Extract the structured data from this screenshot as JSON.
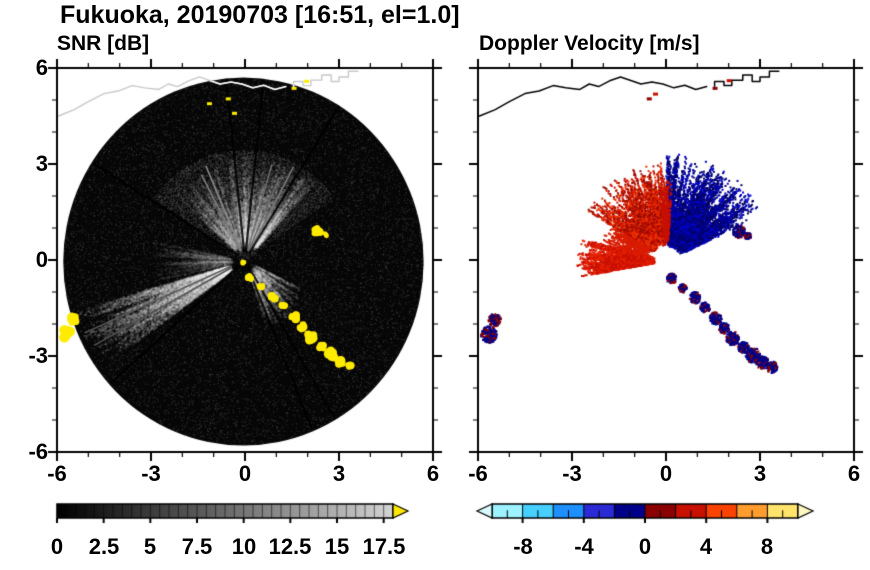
{
  "header": {
    "title": "Fukuoka, 20190703 [16:51, el=1.0]"
  },
  "panels": {
    "snr": {
      "title": "SNR [dB]",
      "xtick_labels": [
        "-6",
        "-3",
        "0",
        "3",
        "6"
      ],
      "ytick_labels": [
        "6",
        "3",
        "0",
        "-3",
        "-6"
      ],
      "colorbar_labels": [
        "0",
        "2.5",
        "5",
        "7.5",
        "10",
        "12.5",
        "15",
        "17.5"
      ]
    },
    "doppler": {
      "title": "Doppler Velocity [m/s]",
      "xtick_labels": [
        "-6",
        "-3",
        "0",
        "3",
        "6"
      ],
      "colorbar_labels": [
        "-8",
        "-4",
        "0",
        "4",
        "8"
      ]
    }
  },
  "chart_data": {
    "type": "heatmap",
    "subtype": "radar_ppi_pair",
    "figure_title": "Fukuoka, 20190703 [16:51, el=1.0]",
    "coastline": [
      [
        [
          -5.95,
          4.5
        ],
        [
          -5.45,
          4.7
        ],
        [
          -5.0,
          4.95
        ],
        [
          -4.5,
          5.2
        ],
        [
          -4.05,
          5.28
        ],
        [
          -3.6,
          5.45
        ],
        [
          -3.2,
          5.38
        ],
        [
          -2.75,
          5.33
        ],
        [
          -2.45,
          5.5
        ],
        [
          -2.15,
          5.42
        ],
        [
          -1.8,
          5.6
        ],
        [
          -1.45,
          5.72
        ],
        [
          -1.1,
          5.6
        ],
        [
          -0.8,
          5.5
        ],
        [
          -0.45,
          5.56
        ],
        [
          -0.1,
          5.5
        ],
        [
          0.25,
          5.38
        ],
        [
          0.6,
          5.46
        ],
        [
          0.95,
          5.33
        ],
        [
          1.3,
          5.42
        ]
      ],
      [
        [
          1.55,
          5.42
        ],
        [
          1.55,
          5.58
        ],
        [
          1.85,
          5.58
        ],
        [
          1.85,
          5.45
        ],
        [
          2.1,
          5.45
        ],
        [
          2.1,
          5.62
        ],
        [
          2.45,
          5.62
        ],
        [
          2.45,
          5.78
        ],
        [
          2.75,
          5.78
        ],
        [
          2.75,
          5.58
        ],
        [
          3.0,
          5.58
        ],
        [
          3.0,
          5.72
        ],
        [
          3.3,
          5.72
        ],
        [
          3.3,
          5.9
        ],
        [
          3.6,
          5.9
        ]
      ]
    ],
    "panels": [
      {
        "id": "snr",
        "title": "SNR [dB]",
        "xlim": [
          -6,
          6
        ],
        "ylim": [
          -6,
          6
        ],
        "xticks": [
          -6,
          -3,
          0,
          3,
          6
        ],
        "yticks": [
          -6,
          -3,
          0,
          3,
          6
        ],
        "minor_step": 1,
        "disk": {
          "cx": -0.05,
          "cy": -0.05,
          "r": 5.75,
          "color": "#060606"
        },
        "colorbar": {
          "range": [
            0,
            18
          ],
          "labels": [
            0,
            2.5,
            5,
            7.5,
            10,
            12.5,
            15,
            17.5
          ],
          "minor_step": 0.5,
          "type": "gray",
          "over_color": "#ffe800"
        },
        "speckle": {
          "n": 15000,
          "gray_min": 8,
          "gray_max": 70
        },
        "bright_region": {
          "a0": 35,
          "a1": 145,
          "r1": 3.5,
          "n": 7000,
          "gray_min": 25,
          "gray_max": 95
        },
        "fans": [
          {
            "a0": 48,
            "a1": 100,
            "r0": 0.4,
            "r1": 3.4,
            "alpha": 0.1,
            "rays": 240
          },
          {
            "a0": 100,
            "a1": 138,
            "r0": 0.4,
            "r1": 3.1,
            "alpha": 0.08,
            "rays": 130
          },
          {
            "a0": 286,
            "a1": 334,
            "r0": 0.3,
            "r1": 2.2,
            "alpha": 0.1,
            "rays": 150
          },
          {
            "a0": 196,
            "a1": 216,
            "r0": 0.5,
            "r1": 5.7,
            "alpha": 0.12,
            "rays": 170
          },
          {
            "a0": 168,
            "a1": 192,
            "r0": 0.4,
            "r1": 3.0,
            "alpha": 0.06,
            "rays": 80
          }
        ],
        "rays": [
          {
            "angle": 62,
            "r0": 0.3,
            "r1": 3.3,
            "color": "#787878"
          },
          {
            "angle": 67,
            "r0": 0.3,
            "r1": 2.8,
            "color": "#6b6b6b"
          },
          {
            "angle": 74,
            "r0": 0.3,
            "r1": 3.1,
            "color": "#707070"
          },
          {
            "angle": 113,
            "r0": 0.3,
            "r1": 3.2,
            "color": "#8a8a8a"
          },
          {
            "angle": 117.5,
            "r0": 0.3,
            "r1": 3.0,
            "color": "#7d7d7d"
          },
          {
            "angle": 204,
            "r0": 0.5,
            "r1": 5.6,
            "color": "#5a5a5a"
          },
          {
            "angle": 209,
            "r0": 0.5,
            "r1": 5.5,
            "color": "#525252"
          }
        ],
        "spokes": [
          58,
          84,
          96,
          148,
          222,
          292,
          300
        ],
        "echo_color": "#ffeb00",
        "chain": [
          [
            0.15,
            -0.55,
            0.16
          ],
          [
            0.5,
            -0.85,
            0.13
          ],
          [
            0.9,
            -1.15,
            0.18
          ],
          [
            1.22,
            -1.45,
            0.16
          ],
          [
            1.55,
            -1.8,
            0.2
          ],
          [
            1.82,
            -2.1,
            0.17
          ],
          [
            2.1,
            -2.42,
            0.22
          ],
          [
            2.45,
            -2.7,
            0.18
          ],
          [
            2.75,
            -2.95,
            0.24
          ],
          [
            3.05,
            -3.18,
            0.2
          ],
          [
            3.35,
            -3.32,
            0.18
          ]
        ],
        "blobs": [
          [
            2.3,
            0.92,
            0.2
          ],
          [
            2.58,
            0.78,
            0.11
          ],
          [
            -5.5,
            -1.85,
            0.2
          ],
          [
            -5.68,
            -2.3,
            0.26
          ],
          [
            -0.05,
            -0.08,
            0.1
          ]
        ],
        "specks": [
          [
            -0.55,
            5.05
          ],
          [
            -0.35,
            4.6
          ],
          [
            1.55,
            5.38
          ],
          [
            1.95,
            5.6
          ],
          [
            -1.15,
            4.9
          ]
        ],
        "coast_color": "#c8c8c8",
        "coast_color_on_disk": "#ffffff"
      },
      {
        "id": "doppler",
        "title": "Doppler Velocity [m/s]",
        "xlim": [
          -6,
          6
        ],
        "ylim": [
          -6,
          6
        ],
        "xticks": [
          -6,
          -3,
          0,
          3,
          6
        ],
        "yticks": [
          -6,
          -3,
          0,
          3,
          6
        ],
        "minor_step": 1,
        "colorbar": {
          "range": [
            -10,
            10
          ],
          "labels": [
            -8,
            -4,
            0,
            4,
            8
          ],
          "minor_step": 1,
          "type": "segments",
          "segment_colors": [
            "#9df2ff",
            "#45d0ff",
            "#1e8fff",
            "#2b2bd6",
            "#00008b",
            "#8b0000",
            "#c81000",
            "#fa4300",
            "#ff9c2e",
            "#ffe36b"
          ],
          "under_color": "#d8fbff",
          "over_color": "#fff8c0"
        },
        "point_fans": [
          {
            "a0": 25,
            "a1": 90,
            "r0": 0.45,
            "r1": 3.4,
            "rays": 240,
            "colors": [
              "#00008b",
              "#0000c8",
              "#000060"
            ]
          },
          {
            "a0": 92,
            "a1": 148,
            "r0": 0.5,
            "r1": 3.1,
            "rays": 175,
            "colors": [
              "#c81000",
              "#ee3000",
              "#960c00"
            ]
          },
          {
            "a0": 166,
            "a1": 190,
            "r0": 0.4,
            "r1": 2.9,
            "rays": 150,
            "colors": [
              "#e62000",
              "#c81000"
            ]
          },
          {
            "a0": 148,
            "a1": 166,
            "r0": 0.6,
            "r1": 2.2,
            "rays": 45,
            "colors": [
              "#d81c00"
            ]
          },
          {
            "a0": 86,
            "a1": 96,
            "r0": 0.6,
            "r1": 2.6,
            "rays": 35,
            "colors": [
              "#c81000"
            ]
          }
        ],
        "chain_colors": [
          "#00008b",
          "#8b0000"
        ],
        "chain_navy_weight": 0.72,
        "chain": [
          [
            0.15,
            -0.55,
            0.16
          ],
          [
            0.5,
            -0.85,
            0.13
          ],
          [
            0.9,
            -1.15,
            0.18
          ],
          [
            1.22,
            -1.45,
            0.16
          ],
          [
            1.55,
            -1.8,
            0.2
          ],
          [
            1.82,
            -2.1,
            0.17
          ],
          [
            2.1,
            -2.42,
            0.22
          ],
          [
            2.45,
            -2.7,
            0.18
          ],
          [
            2.75,
            -2.95,
            0.24
          ],
          [
            3.05,
            -3.18,
            0.2
          ],
          [
            3.35,
            -3.32,
            0.18
          ]
        ],
        "blobs": [
          [
            2.3,
            0.92,
            0.2
          ],
          [
            2.58,
            0.78,
            0.11
          ],
          [
            -5.5,
            -1.85,
            0.2
          ],
          [
            -5.68,
            -2.3,
            0.26
          ]
        ],
        "specks": [
          [
            -0.35,
            5.2
          ],
          [
            1.55,
            5.38
          ],
          [
            2.0,
            5.62
          ],
          [
            -0.55,
            5.05
          ]
        ],
        "coast_color": "#000000"
      }
    ]
  }
}
